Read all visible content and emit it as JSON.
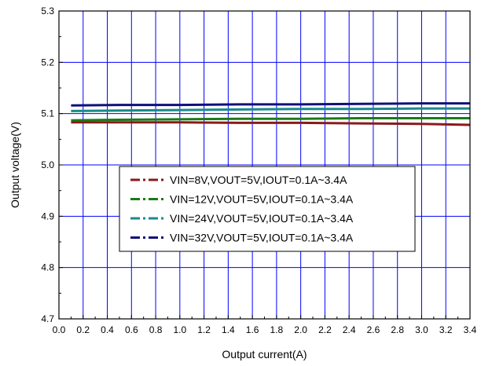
{
  "chart_data": {
    "type": "line",
    "title": "",
    "xlabel": "Output current(A)",
    "ylabel": "Output voltage(V)",
    "xlim": [
      0.0,
      3.4
    ],
    "ylim": [
      4.7,
      5.3
    ],
    "x_ticks": [
      "0.0",
      "0.2",
      "0.4",
      "0.6",
      "0.8",
      "1.0",
      "1.2",
      "1.4",
      "1.6",
      "1.8",
      "2.0",
      "2.2",
      "2.4",
      "2.6",
      "2.8",
      "3.0",
      "3.2",
      "3.4"
    ],
    "y_ticks": [
      "4.7",
      "4.8",
      "4.9",
      "5.0",
      "5.1",
      "5.2",
      "5.3"
    ],
    "grid": true,
    "legend_position": "lower-center",
    "series": [
      {
        "name": "VIN=8V,VOUT=5V,IOUT=0.1A~3.4A",
        "color": "#8b1a1a",
        "style": "dash-dot",
        "x": [
          0.1,
          0.5,
          1.0,
          1.5,
          2.0,
          2.5,
          3.0,
          3.4
        ],
        "y": [
          5.083,
          5.083,
          5.083,
          5.082,
          5.082,
          5.081,
          5.08,
          5.078
        ]
      },
      {
        "name": "VIN=12V,VOUT=5V,IOUT=0.1A~3.4A",
        "color": "#1a7a1a",
        "style": "dash-dot",
        "x": [
          0.1,
          0.5,
          1.0,
          1.5,
          2.0,
          2.5,
          3.0,
          3.4
        ],
        "y": [
          5.087,
          5.088,
          5.089,
          5.09,
          5.09,
          5.091,
          5.091,
          5.091
        ]
      },
      {
        "name": "VIN=24V,VOUT=5V,IOUT=0.1A~3.4A",
        "color": "#1a8a8a",
        "style": "dash-dot",
        "x": [
          0.1,
          0.5,
          1.0,
          1.5,
          2.0,
          2.5,
          3.0,
          3.4
        ],
        "y": [
          5.105,
          5.106,
          5.107,
          5.108,
          5.109,
          5.109,
          5.11,
          5.11
        ]
      },
      {
        "name": "VIN=32V,VOUT=5V,IOUT=0.1A~3.4A",
        "color": "#10107a",
        "style": "dash-dot",
        "x": [
          0.1,
          0.5,
          1.0,
          1.5,
          2.0,
          2.5,
          3.0,
          3.4
        ],
        "y": [
          5.116,
          5.117,
          5.117,
          5.118,
          5.118,
          5.119,
          5.12,
          5.12
        ]
      }
    ]
  }
}
